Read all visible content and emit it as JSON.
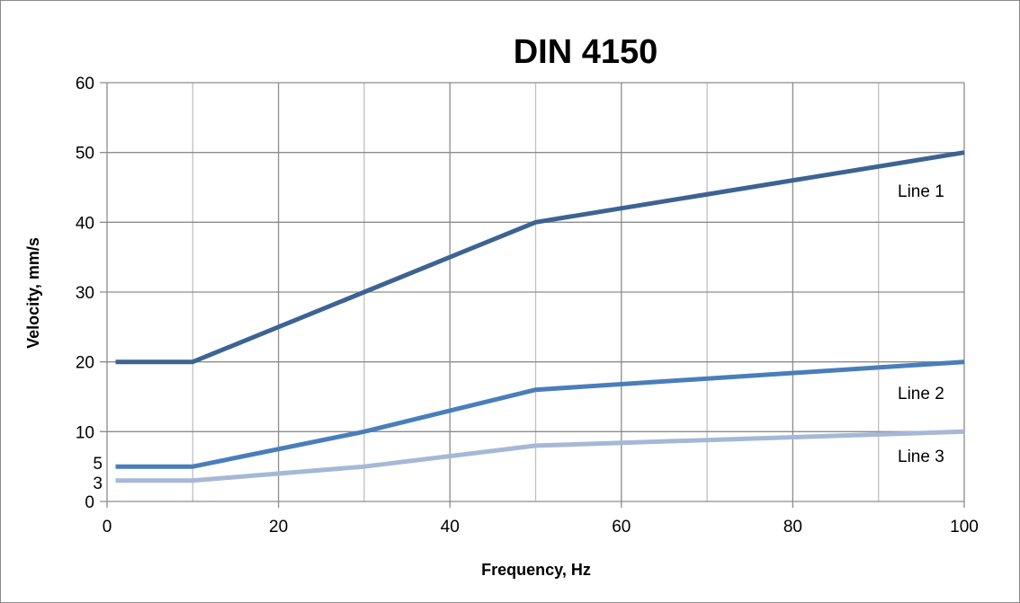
{
  "chart_data": {
    "type": "line",
    "title": "DIN 4150",
    "xlabel": "Frequency, Hz",
    "ylabel": "Velocity, mm/s",
    "xlim": [
      0,
      100
    ],
    "ylim": [
      0,
      60
    ],
    "x_ticks": [
      0,
      20,
      40,
      60,
      80,
      100
    ],
    "y_ticks": [
      0,
      10,
      20,
      30,
      40,
      50,
      60
    ],
    "extra_y_ticks": [
      5,
      3
    ],
    "grid": true,
    "legend": "none",
    "series": [
      {
        "name": "Line 1",
        "color": "#3d6392",
        "x": [
          1,
          10,
          30,
          50,
          100
        ],
        "y": [
          20,
          20,
          30,
          40,
          50
        ]
      },
      {
        "name": "Line 2",
        "color": "#4a7ebb",
        "x": [
          1,
          10,
          30,
          50,
          100
        ],
        "y": [
          5,
          5,
          10,
          16,
          20
        ]
      },
      {
        "name": "Line 3",
        "color": "#a5b8d6",
        "x": [
          1,
          10,
          30,
          50,
          100
        ],
        "y": [
          3,
          3,
          5,
          8,
          10
        ]
      }
    ]
  }
}
